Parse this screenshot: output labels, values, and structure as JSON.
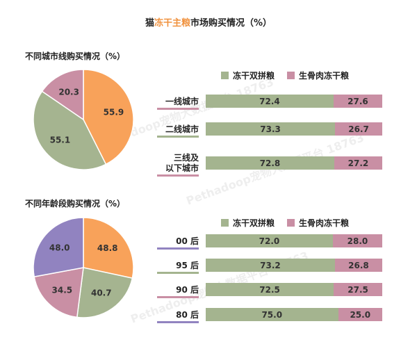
{
  "title": {
    "prefix": "猫",
    "highlight": "冻干主粮",
    "suffix": "市场购买情况（%）"
  },
  "section1_title": "不同城市线购买情况（%）",
  "section2_title": "不同年龄段购买情况（%）",
  "legend": {
    "a": "冻干双拼粮",
    "b": "生骨肉冻干粮"
  },
  "colors": {
    "orange": "#f8a25a",
    "green": "#a5b490",
    "pink": "#c98fa4",
    "purple": "#9183c0",
    "bar_a": "#a4b48f",
    "bar_b": "#c98fa4"
  },
  "chart_data": [
    {
      "type": "pie",
      "title": "不同城市线购买情况（%）",
      "slices": [
        {
          "label": "",
          "value": 55.9,
          "color": "#f8a25a"
        },
        {
          "label": "",
          "value": 55.1,
          "color": "#a5b490"
        },
        {
          "label": "",
          "value": 20.3,
          "color": "#c98fa4"
        }
      ]
    },
    {
      "type": "bar",
      "stacked": true,
      "orientation": "horizontal",
      "categories": [
        "一线城市",
        "二线城市",
        "三线及以下城市"
      ],
      "category_lines": [
        [
          "一线城市"
        ],
        [
          "二线城市"
        ],
        [
          "三线及",
          "以下城市"
        ]
      ],
      "series": [
        {
          "name": "冻干双拼粮",
          "values": [
            72.4,
            73.3,
            72.8
          ]
        },
        {
          "name": "生骨肉冻干粮",
          "values": [
            27.6,
            26.7,
            27.2
          ]
        }
      ]
    },
    {
      "type": "pie",
      "title": "不同年龄段购买情况（%）",
      "slices": [
        {
          "label": "",
          "value": 48.8,
          "color": "#f8a25a"
        },
        {
          "label": "",
          "value": 40.7,
          "color": "#a5b490"
        },
        {
          "label": "",
          "value": 34.5,
          "color": "#c98fa4"
        },
        {
          "label": "",
          "value": 48.0,
          "color": "#9183c0"
        }
      ]
    },
    {
      "type": "bar",
      "stacked": true,
      "orientation": "horizontal",
      "categories": [
        "00 后",
        "95 后",
        "90 后",
        "80 后"
      ],
      "category_lines": [
        [
          "00 后"
        ],
        [
          "95 后"
        ],
        [
          "90 后"
        ],
        [
          "80 后"
        ]
      ],
      "series": [
        {
          "name": "冻干双拼粮",
          "values": [
            72.0,
            73.2,
            72.5,
            75.0
          ]
        },
        {
          "name": "生骨肉冻干粮",
          "values": [
            28.0,
            26.8,
            27.5,
            25.0
          ]
        }
      ]
    }
  ],
  "watermark": "Pethadoop宠物大数据平台 18763"
}
